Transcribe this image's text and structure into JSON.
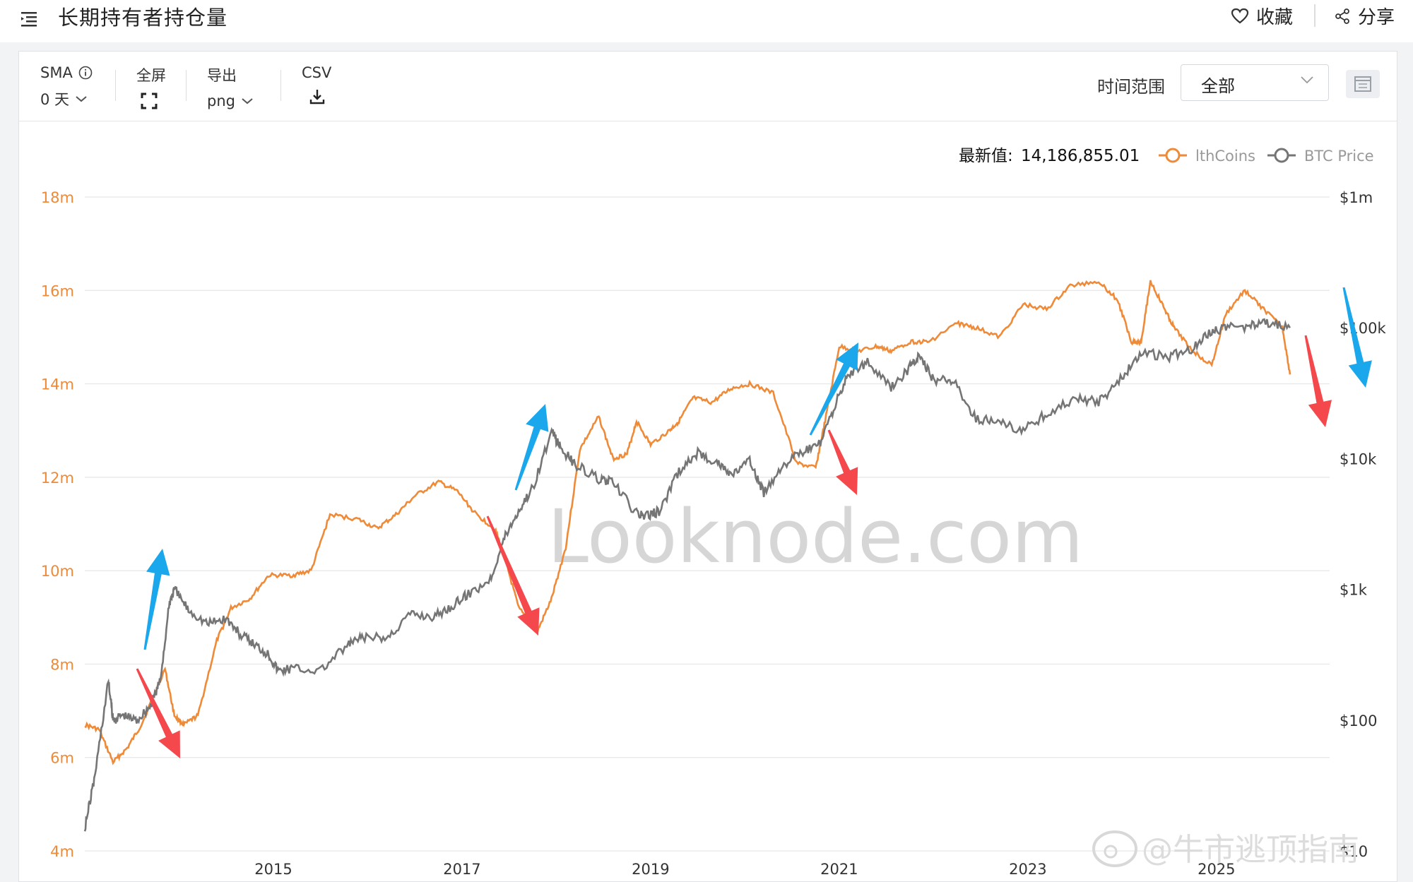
{
  "header": {
    "title": "长期持有者持仓量",
    "favorite_label": "收藏",
    "share_label": "分享"
  },
  "toolbar": {
    "sma_label": "SMA",
    "sma_value": "0 天",
    "fullscreen_label": "全屏",
    "export_label": "导出",
    "export_value": "png",
    "csv_label": "CSV",
    "range_label": "时间范围",
    "range_value": "全部"
  },
  "watermark": "Looknode.com",
  "credit": "@牛市逃顶指南",
  "chart_data": {
    "type": "line",
    "latest_label": "最新值:",
    "latest_value": "14,186,855.01",
    "x_ticks": [
      "2015",
      "2017",
      "2019",
      "2021",
      "2023",
      "2025"
    ],
    "y_left_ticks": [
      "18m",
      "16m",
      "14m",
      "12m",
      "10m",
      "8m",
      "6m",
      "4m"
    ],
    "y_left_range": [
      4000000,
      18000000
    ],
    "y_right_ticks": [
      "$1m",
      "$100k",
      "$10k",
      "$1k",
      "$100",
      "$10"
    ],
    "y_right_scale": "log",
    "y_right_range": [
      10,
      1000000
    ],
    "colors": {
      "lthcoins": "#ee8a38",
      "btc": "#757575",
      "up_arrow": "#1aa7ec",
      "down_arrow": "#f4484d"
    },
    "series": [
      {
        "name": "lthCoins",
        "axis": "left",
        "x": [
          2013.0,
          2013.15,
          2013.3,
          2013.45,
          2013.6,
          2013.85,
          2013.95,
          2014.05,
          2014.2,
          2014.4,
          2014.55,
          2014.75,
          2014.95,
          2015.2,
          2015.4,
          2015.6,
          2015.9,
          2016.1,
          2016.3,
          2016.5,
          2016.75,
          2016.95,
          2017.15,
          2017.35,
          2017.45,
          2017.6,
          2017.8,
          2017.95,
          2018.1,
          2018.25,
          2018.45,
          2018.6,
          2018.75,
          2018.85,
          2019.0,
          2019.2,
          2019.3,
          2019.45,
          2019.65,
          2019.85,
          2020.05,
          2020.3,
          2020.55,
          2020.75,
          2020.85,
          2021.0,
          2021.2,
          2021.4,
          2021.55,
          2021.75,
          2021.95,
          2022.25,
          2022.45,
          2022.7,
          2022.95,
          2023.2,
          2023.45,
          2023.75,
          2023.95,
          2024.1,
          2024.2,
          2024.3,
          2024.45,
          2024.55,
          2024.75,
          2024.95,
          2025.1,
          2025.3,
          2025.5,
          2025.7,
          2025.78
        ],
        "values": [
          6700000,
          6600000,
          5900000,
          6200000,
          6700000,
          7900000,
          6900000,
          6700000,
          6900000,
          8500000,
          9200000,
          9400000,
          9900000,
          9900000,
          10000000,
          11200000,
          11100000,
          10900000,
          11200000,
          11600000,
          11900000,
          11700000,
          11200000,
          10900000,
          10300000,
          9200000,
          8700000,
          9400000,
          10500000,
          12600000,
          13300000,
          12400000,
          12500000,
          13200000,
          12700000,
          13000000,
          13200000,
          13700000,
          13600000,
          13900000,
          14000000,
          13800000,
          12300000,
          12200000,
          13200000,
          14800000,
          14700000,
          14800000,
          14700000,
          14900000,
          14900000,
          15300000,
          15200000,
          15000000,
          15700000,
          15600000,
          16100000,
          16200000,
          15800000,
          14900000,
          14900000,
          16200000,
          15600000,
          15200000,
          14700000,
          14400000,
          15500000,
          16000000,
          15600000,
          15200000,
          14200000
        ]
      },
      {
        "name": "BTC Price",
        "axis": "right",
        "x": [
          2013.0,
          2013.1,
          2013.25,
          2013.3,
          2013.4,
          2013.55,
          2013.7,
          2013.8,
          2013.9,
          2013.95,
          2014.1,
          2014.3,
          2014.5,
          2014.65,
          2014.8,
          2014.95,
          2015.05,
          2015.2,
          2015.5,
          2015.8,
          2015.95,
          2016.2,
          2016.45,
          2016.7,
          2016.9,
          2017.05,
          2017.3,
          2017.45,
          2017.6,
          2017.75,
          2017.95,
          2018.05,
          2018.2,
          2018.45,
          2018.6,
          2018.85,
          2018.95,
          2019.1,
          2019.3,
          2019.5,
          2019.7,
          2019.85,
          2020.05,
          2020.2,
          2020.4,
          2020.6,
          2020.8,
          2020.95,
          2021.1,
          2021.3,
          2021.55,
          2021.75,
          2021.85,
          2022.0,
          2022.2,
          2022.45,
          2022.7,
          2022.95,
          2023.2,
          2023.5,
          2023.75,
          2024.0,
          2024.2,
          2024.5,
          2024.75,
          2024.95,
          2025.1,
          2025.35,
          2025.55,
          2025.78
        ],
        "values": [
          15,
          35,
          200,
          100,
          110,
          100,
          130,
          200,
          800,
          1000,
          700,
          550,
          600,
          450,
          380,
          320,
          240,
          250,
          240,
          380,
          430,
          420,
          650,
          620,
          750,
          900,
          1200,
          2500,
          4000,
          6000,
          16000,
          12000,
          9000,
          7000,
          6500,
          3800,
          3600,
          4000,
          8000,
          11000,
          9500,
          7500,
          9500,
          5500,
          9000,
          11000,
          13000,
          25000,
          45000,
          55000,
          35000,
          50000,
          60000,
          40000,
          40000,
          20000,
          19000,
          16500,
          22000,
          29000,
          27000,
          42000,
          65000,
          60000,
          70000,
          95000,
          100000,
          103000,
          110000,
          100000
        ]
      }
    ],
    "annotations": [
      {
        "type": "arrow",
        "color": "up",
        "direction": "up",
        "at_x": 2013.9
      },
      {
        "type": "arrow",
        "color": "down",
        "direction": "down",
        "at_x": 2013.9
      },
      {
        "type": "arrow",
        "color": "up",
        "direction": "up",
        "at_x": 2017.6
      },
      {
        "type": "arrow",
        "color": "down",
        "direction": "down",
        "at_x": 2017.4
      },
      {
        "type": "arrow",
        "color": "up",
        "direction": "up",
        "at_x": 2020.9
      },
      {
        "type": "arrow",
        "color": "down",
        "direction": "down",
        "at_x": 2020.8
      },
      {
        "type": "arrow",
        "color": "up",
        "direction": "down",
        "at_x": 2026.2
      },
      {
        "type": "arrow",
        "color": "down",
        "direction": "down",
        "at_x": 2025.8
      }
    ]
  }
}
